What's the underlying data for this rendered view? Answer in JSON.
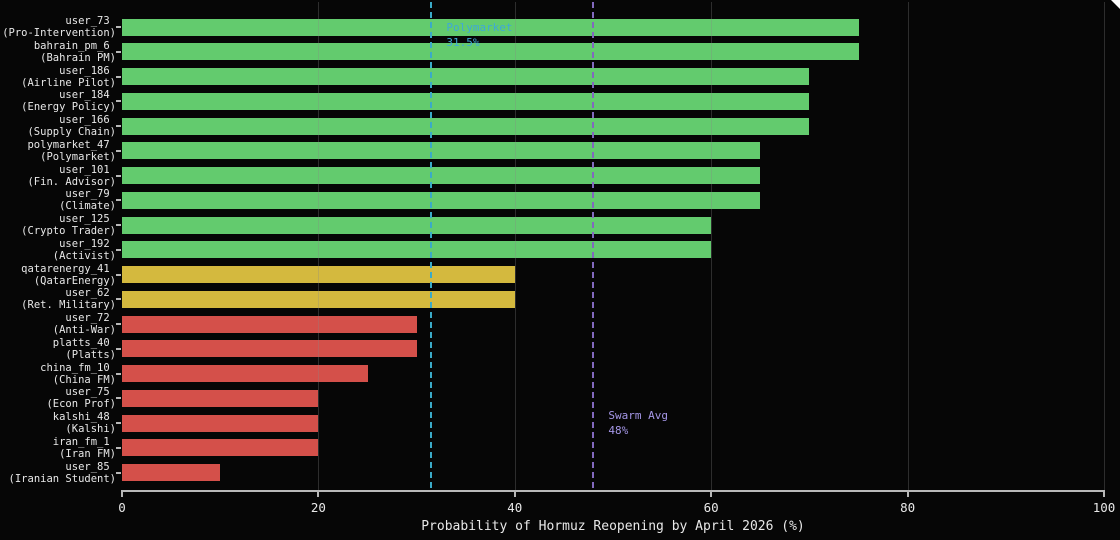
{
  "chart_data": {
    "type": "bar",
    "orientation": "horizontal",
    "xlabel": "Probability of Hormuz Reopening by April 2026 (%)",
    "xlim": [
      0,
      100
    ],
    "x_ticks": [
      0,
      20,
      40,
      60,
      80,
      100
    ],
    "grid": "vertical gridlines at ticks, subtle gray, dark background",
    "legend": "none",
    "group_colors": {
      "high": "#63cb6e",
      "mid": "#d4b93e",
      "low": "#d4504a"
    },
    "bars": [
      {
        "name": "user_73",
        "role": "(Pro-Intervention)",
        "value": 75,
        "group": "high"
      },
      {
        "name": "bahrain_pm_6",
        "role": "(Bahrain PM)",
        "value": 75,
        "group": "high"
      },
      {
        "name": "user_186",
        "role": "(Airline Pilot)",
        "value": 70,
        "group": "high"
      },
      {
        "name": "user_184",
        "role": "(Energy Policy)",
        "value": 70,
        "group": "high"
      },
      {
        "name": "user_166",
        "role": "(Supply Chain)",
        "value": 70,
        "group": "high"
      },
      {
        "name": "polymarket_47",
        "role": "(Polymarket)",
        "value": 65,
        "group": "high"
      },
      {
        "name": "user_101",
        "role": "(Fin. Advisor)",
        "value": 65,
        "group": "high"
      },
      {
        "name": "user_79",
        "role": "(Climate)",
        "value": 65,
        "group": "high"
      },
      {
        "name": "user_125",
        "role": "(Crypto Trader)",
        "value": 60,
        "group": "high"
      },
      {
        "name": "user_192",
        "role": "(Activist)",
        "value": 60,
        "group": "high"
      },
      {
        "name": "qatarenergy_41",
        "role": "(QatarEnergy)",
        "value": 40,
        "group": "mid"
      },
      {
        "name": "user_62",
        "role": "(Ret. Military)",
        "value": 40,
        "group": "mid"
      },
      {
        "name": "user_72",
        "role": "(Anti-War)",
        "value": 30,
        "group": "low"
      },
      {
        "name": "platts_40",
        "role": "(Platts)",
        "value": 30,
        "group": "low"
      },
      {
        "name": "china_fm_10",
        "role": "(China FM)",
        "value": 25,
        "group": "low"
      },
      {
        "name": "user_75",
        "role": "(Econ Prof)",
        "value": 20,
        "group": "low"
      },
      {
        "name": "kalshi_48",
        "role": "(Kalshi)",
        "value": 20,
        "group": "low"
      },
      {
        "name": "iran_fm_1",
        "role": "(Iran FM)",
        "value": 20,
        "group": "low"
      },
      {
        "name": "user_85",
        "role": "(Iranian Student)",
        "value": 10,
        "group": "low"
      }
    ],
    "reference_lines": [
      {
        "name": "polymarket",
        "value": 31.5,
        "label": "Polymarket",
        "value_label": "31.5%",
        "line_color": "#3aaac8",
        "text_color": "#3fa9d6",
        "style": "dashed",
        "label_pos": "top"
      },
      {
        "name": "swarm-avg",
        "value": 48,
        "label": "Swarm Avg",
        "value_label": "48%",
        "line_color": "#8269be",
        "text_color": "#a496e6",
        "style": "dashed",
        "label_pos": "bottom"
      }
    ]
  }
}
